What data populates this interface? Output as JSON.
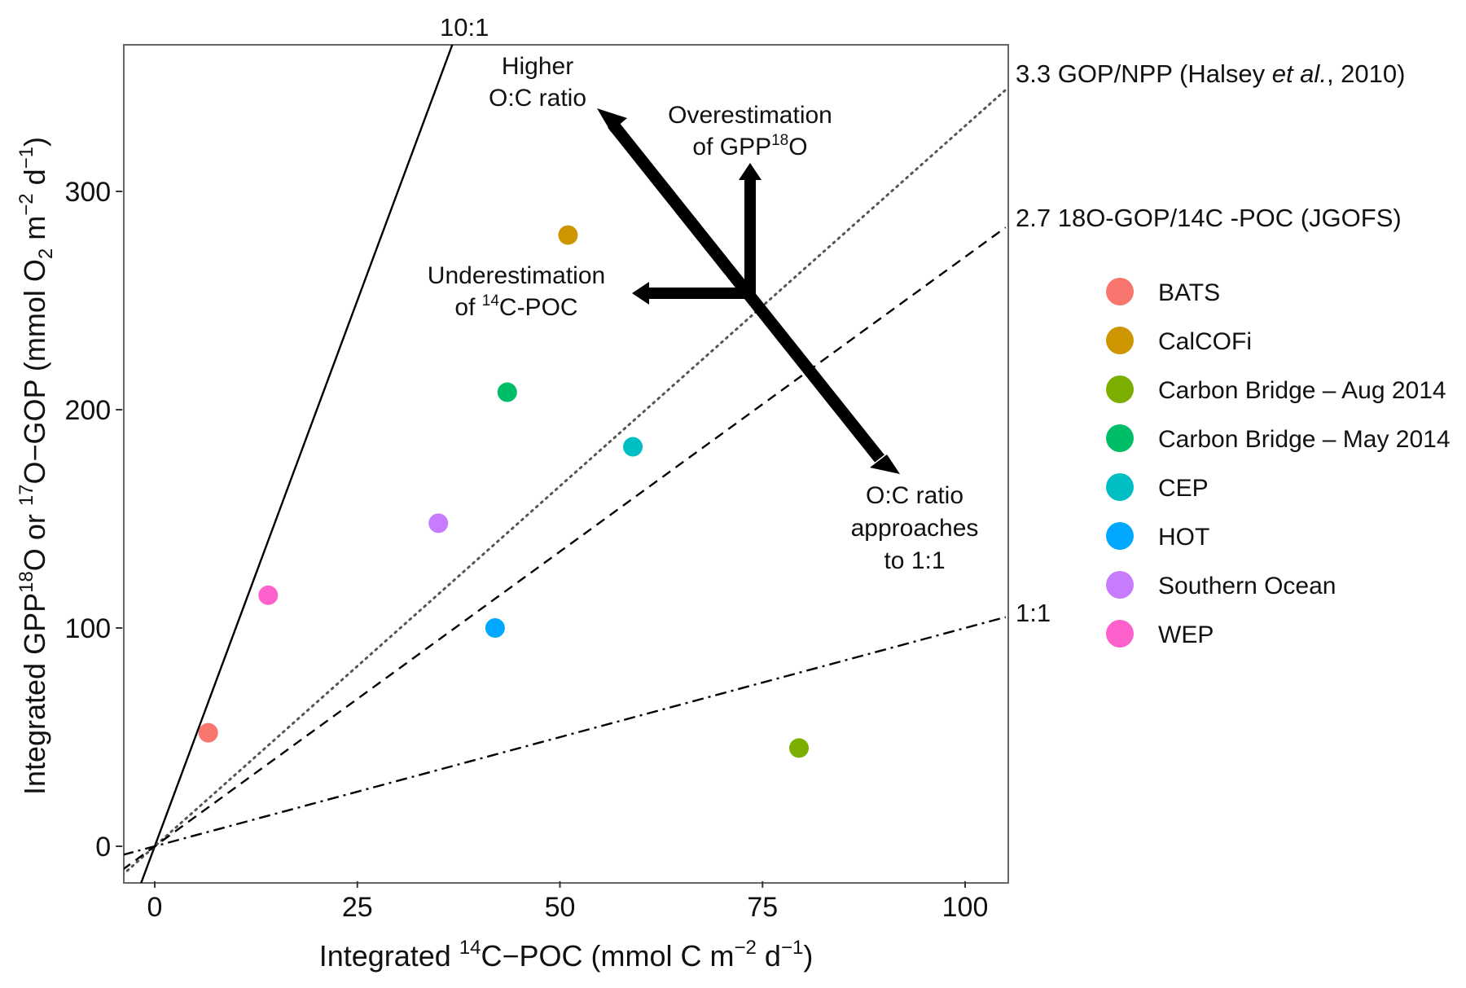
{
  "chart_data": {
    "type": "scatter",
    "xlabel": {
      "pre": "Integrated ",
      "sup": "14",
      "post": "C−POC (mmol C m",
      "sup2": "−2",
      "post2": " d",
      "sup3": "−1",
      "post3": ")"
    },
    "ylabel": {
      "pre": "Integrated GPP",
      "sup": "18",
      "mid": "O or ",
      "sup2": "17",
      "post": "O−GOP  (mmol O",
      "sub": "2",
      "post2": " m",
      "sup3": "−2",
      "post3": " d",
      "sup4": "−1",
      "post4": ")"
    },
    "xlim": [
      -4,
      105
    ],
    "ylim": [
      -16,
      366
    ],
    "xticks": [
      0,
      25,
      50,
      75,
      100
    ],
    "yticks": [
      0,
      100,
      200,
      300
    ],
    "grid": false,
    "legend_position": "right",
    "series": [
      {
        "name": "BATS",
        "color": "#F8766D",
        "x": 6.6,
        "y": 52
      },
      {
        "name": "CalCOFi",
        "color": "#CD9600",
        "x": 51,
        "y": 280
      },
      {
        "name": "Carbon Bridge – Aug 2014",
        "color": "#7CAE00",
        "x": 79.5,
        "y": 45
      },
      {
        "name": "Carbon Bridge – May 2014",
        "color": "#00BE67",
        "x": 43.5,
        "y": 208
      },
      {
        "name": "CEP",
        "color": "#00BFC4",
        "x": 59,
        "y": 183
      },
      {
        "name": "HOT",
        "color": "#00A9FF",
        "x": 42,
        "y": 100
      },
      {
        "name": "Southern Ocean",
        "color": "#C77CFF",
        "x": 35,
        "y": 148
      },
      {
        "name": "WEP",
        "color": "#FF61CC",
        "x": 14,
        "y": 115
      }
    ],
    "reference_lines": [
      {
        "slope": 10,
        "style": "solid",
        "label": "10:1"
      },
      {
        "slope": 3.3,
        "style": "dotted",
        "label_pre": "3.3 GOP/NPP (Halsey ",
        "label_em": "et al.",
        "label_post": ", 2010)"
      },
      {
        "slope": 2.7,
        "style": "dashed",
        "label": "2.7 18O-GOP/14C -POC (JGOFS)"
      },
      {
        "slope": 1,
        "style": "dotdash",
        "label": "1:1"
      }
    ],
    "annotations": {
      "higher_line1": "Higher",
      "higher_line2": "O:C ratio",
      "over_line1": "Overestimation",
      "over_line2_pre": "of GPP",
      "over_line2_sup": "18",
      "over_line2_post": "O",
      "under_line1": "Underestimation",
      "under_line2_pre": "of ",
      "under_line2_sup": "14",
      "under_line2_post": "C-POC",
      "approach_line1": "O:C ratio",
      "approach_line2": "approaches",
      "approach_line3": "to 1:1"
    }
  }
}
